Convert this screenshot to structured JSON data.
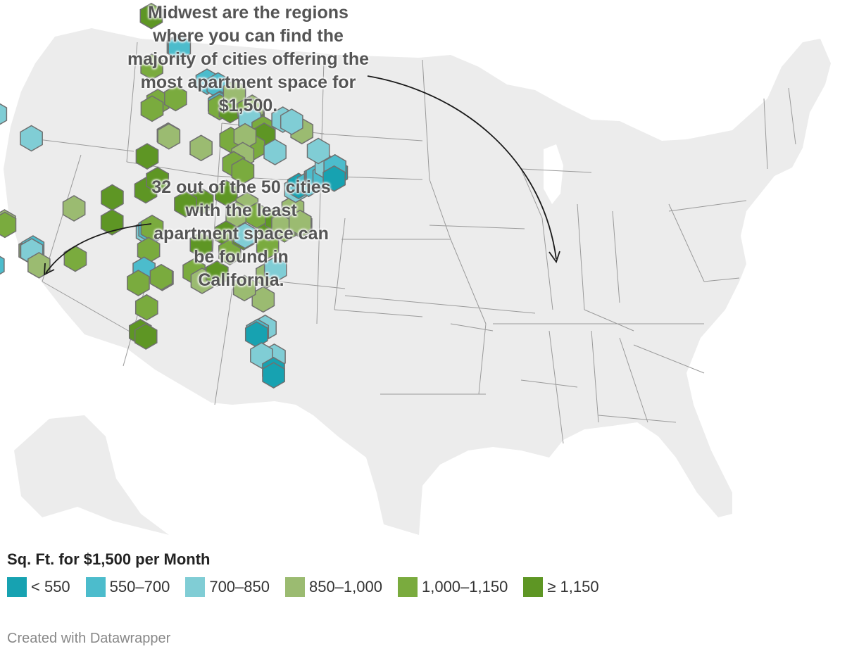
{
  "annotations": {
    "midwest": "Midwest are the regions where you can find the majority of cities offering the most apartment space for $1,500.",
    "california": "32 out of the 50 cities with the least apartment space can be found in California."
  },
  "legend": {
    "title": "Sq. Ft. for $1,500 per Month",
    "items": [
      {
        "label": "< 550",
        "color": "#17a2b1"
      },
      {
        "label": "550–700",
        "color": "#4cbccc"
      },
      {
        "label": "700–850",
        "color": "#80cdd5"
      },
      {
        "label": "850–1,000",
        "color": "#9bbb71"
      },
      {
        "label": "1,000–1,150",
        "color": "#7aab3e"
      },
      {
        "label": "≥ 1,150",
        "color": "#5e9624"
      }
    ]
  },
  "footer": "Created with Datawrapper",
  "colors": {
    "land": "#ececec",
    "state_border": "#9a9a9a",
    "hex_stroke": "#707070"
  },
  "cities": [
    {
      "lat": 48.75,
      "lon": -122.48,
      "bin": 0
    },
    {
      "lat": 48.4,
      "lon": -122.6,
      "bin": 2
    },
    {
      "lat": 47.62,
      "lon": -122.32,
      "bin": 1
    },
    {
      "lat": 47.5,
      "lon": -122.4,
      "bin": 2
    },
    {
      "lat": 47.3,
      "lon": -122.55,
      "bin": 4
    },
    {
      "lat": 46.3,
      "lon": -122.9,
      "bin": 2
    },
    {
      "lat": 47.65,
      "lon": -117.45,
      "bin": 3
    },
    {
      "lat": 43.6,
      "lon": -116.2,
      "bin": 2
    },
    {
      "lat": 40.76,
      "lon": -111.89,
      "bin": 2
    },
    {
      "lat": 39.5,
      "lon": -119.8,
      "bin": 2
    },
    {
      "lat": 38.5,
      "lon": -121.5,
      "bin": 0
    },
    {
      "lat": 38.6,
      "lon": -121.3,
      "bin": 1
    },
    {
      "lat": 38.1,
      "lon": -122.2,
      "bin": 0
    },
    {
      "lat": 37.8,
      "lon": -122.27,
      "bin": 0
    },
    {
      "lat": 37.55,
      "lon": -122.0,
      "bin": 1
    },
    {
      "lat": 37.35,
      "lon": -121.9,
      "bin": 0
    },
    {
      "lat": 36.9,
      "lon": -121.6,
      "bin": 0
    },
    {
      "lat": 36.6,
      "lon": -121.85,
      "bin": 2
    },
    {
      "lat": 36.2,
      "lon": -121.5,
      "bin": 2
    },
    {
      "lat": 35.3,
      "lon": -120.66,
      "bin": 3
    },
    {
      "lat": 36.75,
      "lon": -119.77,
      "bin": 3
    },
    {
      "lat": 36.7,
      "lon": -119.6,
      "bin": 4
    },
    {
      "lat": 35.37,
      "lon": -119.02,
      "bin": 3
    },
    {
      "lat": 34.42,
      "lon": -119.7,
      "bin": 0
    },
    {
      "lat": 34.3,
      "lon": -119.2,
      "bin": 1
    },
    {
      "lat": 34.05,
      "lon": -118.24,
      "bin": 0
    },
    {
      "lat": 34.1,
      "lon": -118.0,
      "bin": 1
    },
    {
      "lat": 34.0,
      "lon": -117.9,
      "bin": 0
    },
    {
      "lat": 33.85,
      "lon": -118.0,
      "bin": 0
    },
    {
      "lat": 34.05,
      "lon": -117.3,
      "bin": 1
    },
    {
      "lat": 33.7,
      "lon": -117.8,
      "bin": 0
    },
    {
      "lat": 33.3,
      "lon": -117.2,
      "bin": 0
    },
    {
      "lat": 32.9,
      "lon": -117.15,
      "bin": 0
    },
    {
      "lat": 32.72,
      "lon": -117.16,
      "bin": 0
    },
    {
      "lat": 33.8,
      "lon": -116.5,
      "bin": 1
    },
    {
      "lat": 36.17,
      "lon": -115.14,
      "bin": 3
    },
    {
      "lat": 36.0,
      "lon": -115.1,
      "bin": 4
    },
    {
      "lat": 33.45,
      "lon": -112.07,
      "bin": 3
    },
    {
      "lat": 33.4,
      "lon": -111.9,
      "bin": 4
    },
    {
      "lat": 33.5,
      "lon": -111.7,
      "bin": 1
    },
    {
      "lat": 33.35,
      "lon": -111.85,
      "bin": 2
    },
    {
      "lat": 32.22,
      "lon": -110.97,
      "bin": 3
    },
    {
      "lat": 35.08,
      "lon": -106.65,
      "bin": 3
    },
    {
      "lat": 31.76,
      "lon": -106.49,
      "bin": 4
    },
    {
      "lat": 35.2,
      "lon": -101.83,
      "bin": 5
    },
    {
      "lat": 33.58,
      "lon": -101.85,
      "bin": 5
    },
    {
      "lat": 46.88,
      "lon": -96.8,
      "bin": 5
    },
    {
      "lat": 43.55,
      "lon": -96.73,
      "bin": 4
    },
    {
      "lat": 41.26,
      "lon": -95.94,
      "bin": 4
    },
    {
      "lat": 40.81,
      "lon": -96.7,
      "bin": 4
    },
    {
      "lat": 41.6,
      "lon": -93.61,
      "bin": 4
    },
    {
      "lat": 39.1,
      "lon": -94.58,
      "bin": 3
    },
    {
      "lat": 39.05,
      "lon": -94.5,
      "bin": 3
    },
    {
      "lat": 37.69,
      "lon": -97.34,
      "bin": 5
    },
    {
      "lat": 35.47,
      "lon": -97.52,
      "bin": 5
    },
    {
      "lat": 36.15,
      "lon": -95.99,
      "bin": 5
    },
    {
      "lat": 32.78,
      "lon": -96.8,
      "bin": 1
    },
    {
      "lat": 32.75,
      "lon": -97.33,
      "bin": 2
    },
    {
      "lat": 32.9,
      "lon": -97.0,
      "bin": 1
    },
    {
      "lat": 33.0,
      "lon": -96.7,
      "bin": 4
    },
    {
      "lat": 31.55,
      "lon": -97.15,
      "bin": 4
    },
    {
      "lat": 30.27,
      "lon": -97.74,
      "bin": 1
    },
    {
      "lat": 29.42,
      "lon": -98.49,
      "bin": 4
    },
    {
      "lat": 29.76,
      "lon": -95.37,
      "bin": 3
    },
    {
      "lat": 29.8,
      "lon": -95.5,
      "bin": 4
    },
    {
      "lat": 27.8,
      "lon": -97.4,
      "bin": 4
    },
    {
      "lat": 26.2,
      "lon": -98.23,
      "bin": 5
    },
    {
      "lat": 25.9,
      "lon": -97.5,
      "bin": 5
    },
    {
      "lat": 44.98,
      "lon": -93.27,
      "bin": 1
    },
    {
      "lat": 44.95,
      "lon": -93.1,
      "bin": 1
    },
    {
      "lat": 43.07,
      "lon": -89.4,
      "bin": 1
    },
    {
      "lat": 43.04,
      "lon": -87.9,
      "bin": 1
    },
    {
      "lat": 41.88,
      "lon": -87.63,
      "bin": 0
    },
    {
      "lat": 41.8,
      "lon": -87.75,
      "bin": 1
    },
    {
      "lat": 41.65,
      "lon": -87.7,
      "bin": 4
    },
    {
      "lat": 41.7,
      "lon": -86.25,
      "bin": 5
    },
    {
      "lat": 42.96,
      "lon": -85.66,
      "bin": 3
    },
    {
      "lat": 42.33,
      "lon": -83.05,
      "bin": 5
    },
    {
      "lat": 42.5,
      "lon": -83.2,
      "bin": 3
    },
    {
      "lat": 42.25,
      "lon": -83.7,
      "bin": 4
    },
    {
      "lat": 41.65,
      "lon": -83.54,
      "bin": 2
    },
    {
      "lat": 41.5,
      "lon": -81.69,
      "bin": 4
    },
    {
      "lat": 41.08,
      "lon": -81.52,
      "bin": 5
    },
    {
      "lat": 39.96,
      "lon": -83.0,
      "bin": 4
    },
    {
      "lat": 39.76,
      "lon": -86.16,
      "bin": 4
    },
    {
      "lat": 40.4,
      "lon": -84.2,
      "bin": 3
    },
    {
      "lat": 39.1,
      "lon": -84.51,
      "bin": 3
    },
    {
      "lat": 38.63,
      "lon": -90.2,
      "bin": 3
    },
    {
      "lat": 38.25,
      "lon": -85.76,
      "bin": 4
    },
    {
      "lat": 38.05,
      "lon": -84.5,
      "bin": 4
    },
    {
      "lat": 36.17,
      "lon": -86.78,
      "bin": 5
    },
    {
      "lat": 35.96,
      "lon": -83.92,
      "bin": 3
    },
    {
      "lat": 35.15,
      "lon": -90.05,
      "bin": 5
    },
    {
      "lat": 34.75,
      "lon": -92.29,
      "bin": 5
    },
    {
      "lat": 35.05,
      "lon": -85.31,
      "bin": 3
    },
    {
      "lat": 33.52,
      "lon": -86.8,
      "bin": 5
    },
    {
      "lat": 32.3,
      "lon": -90.18,
      "bin": 5
    },
    {
      "lat": 30.45,
      "lon": -91.15,
      "bin": 4
    },
    {
      "lat": 29.95,
      "lon": -90.07,
      "bin": 3
    },
    {
      "lat": 30.7,
      "lon": -88.04,
      "bin": 5
    },
    {
      "lat": 32.4,
      "lon": -86.3,
      "bin": 4
    },
    {
      "lat": 33.75,
      "lon": -84.39,
      "bin": 5
    },
    {
      "lat": 33.9,
      "lon": -84.2,
      "bin": 2
    },
    {
      "lat": 32.08,
      "lon": -81.1,
      "bin": 3
    },
    {
      "lat": 30.33,
      "lon": -81.66,
      "bin": 3
    },
    {
      "lat": 30.44,
      "lon": -84.28,
      "bin": 3
    },
    {
      "lat": 28.54,
      "lon": -81.38,
      "bin": 2
    },
    {
      "lat": 28.0,
      "lon": -82.46,
      "bin": 1
    },
    {
      "lat": 27.8,
      "lon": -82.6,
      "bin": 0
    },
    {
      "lat": 27.0,
      "lon": -80.1,
      "bin": 2
    },
    {
      "lat": 26.6,
      "lon": -81.9,
      "bin": 2
    },
    {
      "lat": 26.1,
      "lon": -80.2,
      "bin": 0
    },
    {
      "lat": 25.77,
      "lon": -80.19,
      "bin": 0
    },
    {
      "lat": 34.0,
      "lon": -81.03,
      "bin": 4
    },
    {
      "lat": 32.78,
      "lon": -79.93,
      "bin": 2
    },
    {
      "lat": 35.23,
      "lon": -80.84,
      "bin": 5
    },
    {
      "lat": 35.6,
      "lon": -82.55,
      "bin": 4
    },
    {
      "lat": 35.78,
      "lon": -78.64,
      "bin": 4
    },
    {
      "lat": 36.07,
      "lon": -79.8,
      "bin": 5
    },
    {
      "lat": 36.0,
      "lon": -78.9,
      "bin": 3
    },
    {
      "lat": 37.54,
      "lon": -77.44,
      "bin": 3
    },
    {
      "lat": 36.85,
      "lon": -76.29,
      "bin": 4
    },
    {
      "lat": 36.95,
      "lon": -76.4,
      "bin": 3
    },
    {
      "lat": 38.9,
      "lon": -77.04,
      "bin": 2
    },
    {
      "lat": 39.29,
      "lon": -76.61,
      "bin": 0
    },
    {
      "lat": 39.95,
      "lon": -75.17,
      "bin": 1
    },
    {
      "lat": 40.44,
      "lon": -79.99,
      "bin": 2
    },
    {
      "lat": 40.73,
      "lon": -74.17,
      "bin": 1
    },
    {
      "lat": 40.71,
      "lon": -74.01,
      "bin": 0
    },
    {
      "lat": 40.9,
      "lon": -73.9,
      "bin": 1
    },
    {
      "lat": 41.3,
      "lon": -72.92,
      "bin": 1
    },
    {
      "lat": 42.1,
      "lon": -72.6,
      "bin": 2
    },
    {
      "lat": 42.36,
      "lon": -71.06,
      "bin": 0
    },
    {
      "lat": 42.6,
      "lon": -71.3,
      "bin": 1
    },
    {
      "lat": 41.82,
      "lon": -71.41,
      "bin": 0
    },
    {
      "lat": 43.05,
      "lon": -76.15,
      "bin": 3
    },
    {
      "lat": 42.89,
      "lon": -78.88,
      "bin": 2
    },
    {
      "lat": 43.16,
      "lon": -77.61,
      "bin": 2
    },
    {
      "lat": 42.65,
      "lon": -73.75,
      "bin": 2
    }
  ]
}
